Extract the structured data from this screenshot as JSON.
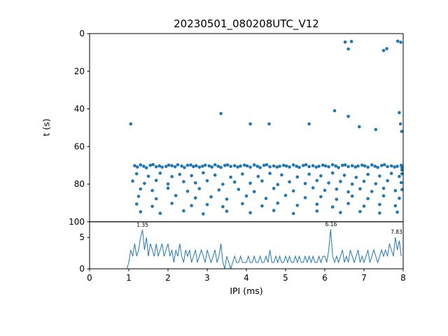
{
  "figure_title": "20230501_080208UTC_V12",
  "accent_color": "#1f77b4",
  "chart_data": [
    {
      "type": "scatter",
      "title": "20230501_080208UTC_V12",
      "xlabel": "",
      "ylabel": "t (s)",
      "xlim": [
        0,
        8
      ],
      "ylim": [
        0,
        100
      ],
      "y_inverted": true,
      "yticks": [
        0,
        20,
        40,
        60,
        80,
        100
      ],
      "grid": false,
      "legend": "none",
      "color": "#1f77b4",
      "points": [
        [
          1.15,
          70.2
        ],
        [
          1.22,
          70.9
        ],
        [
          1.3,
          69.8
        ],
        [
          1.38,
          70.5
        ],
        [
          1.45,
          71.3
        ],
        [
          1.55,
          70.0
        ],
        [
          1.62,
          69.6
        ],
        [
          1.7,
          70.8
        ],
        [
          1.78,
          70.3
        ],
        [
          1.85,
          71.0
        ],
        [
          1.95,
          70.6
        ],
        [
          2.02,
          69.9
        ],
        [
          2.1,
          70.2
        ],
        [
          2.18,
          70.8
        ],
        [
          2.25,
          69.7
        ],
        [
          2.35,
          70.4
        ],
        [
          2.42,
          71.2
        ],
        [
          2.5,
          70.0
        ],
        [
          2.58,
          69.8
        ],
        [
          2.65,
          70.7
        ],
        [
          2.72,
          70.2
        ],
        [
          2.8,
          71.0
        ],
        [
          2.88,
          70.5
        ],
        [
          2.95,
          69.9
        ],
        [
          3.05,
          70.3
        ],
        [
          3.12,
          70.9
        ],
        [
          3.2,
          69.7
        ],
        [
          3.28,
          70.5
        ],
        [
          3.35,
          71.1
        ],
        [
          3.45,
          70.1
        ],
        [
          3.52,
          69.8
        ],
        [
          3.6,
          70.6
        ],
        [
          3.7,
          70.2
        ],
        [
          3.78,
          70.9
        ],
        [
          3.85,
          70.4
        ],
        [
          3.95,
          69.9
        ],
        [
          4.02,
          70.3
        ],
        [
          4.1,
          71.0
        ],
        [
          4.2,
          69.8
        ],
        [
          4.28,
          70.5
        ],
        [
          4.35,
          71.2
        ],
        [
          4.45,
          70.0
        ],
        [
          4.52,
          69.7
        ],
        [
          4.6,
          70.8
        ],
        [
          4.7,
          70.3
        ],
        [
          4.78,
          70.9
        ],
        [
          4.85,
          70.5
        ],
        [
          4.95,
          70.0
        ],
        [
          5.02,
          70.4
        ],
        [
          5.1,
          70.9
        ],
        [
          5.2,
          69.8
        ],
        [
          5.28,
          70.5
        ],
        [
          5.35,
          71.1
        ],
        [
          5.45,
          70.1
        ],
        [
          5.52,
          69.7
        ],
        [
          5.6,
          70.7
        ],
        [
          5.7,
          70.2
        ],
        [
          5.78,
          71.0
        ],
        [
          5.85,
          70.5
        ],
        [
          5.95,
          69.9
        ],
        [
          6.02,
          70.3
        ],
        [
          6.1,
          70.8
        ],
        [
          6.2,
          69.7
        ],
        [
          6.28,
          70.4
        ],
        [
          6.35,
          71.2
        ],
        [
          6.45,
          70.0
        ],
        [
          6.52,
          69.8
        ],
        [
          6.6,
          70.7
        ],
        [
          6.7,
          70.2
        ],
        [
          6.78,
          70.9
        ],
        [
          6.85,
          70.4
        ],
        [
          6.95,
          69.9
        ],
        [
          7.02,
          70.3
        ],
        [
          7.1,
          71.0
        ],
        [
          7.2,
          69.8
        ],
        [
          7.28,
          70.5
        ],
        [
          7.35,
          71.1
        ],
        [
          7.45,
          70.1
        ],
        [
          7.52,
          69.7
        ],
        [
          7.6,
          70.7
        ],
        [
          7.7,
          70.3
        ],
        [
          7.78,
          70.9
        ],
        [
          7.85,
          70.5
        ],
        [
          7.95,
          70.0
        ],
        [
          7.97,
          71.3
        ],
        [
          7.97,
          72.5
        ],
        [
          1.2,
          74.5
        ],
        [
          1.5,
          75.8
        ],
        [
          1.8,
          74.2
        ],
        [
          2.1,
          76.0
        ],
        [
          2.3,
          74.8
        ],
        [
          2.6,
          75.5
        ],
        [
          2.9,
          74.0
        ],
        [
          3.2,
          75.2
        ],
        [
          3.6,
          76.3
        ],
        [
          3.9,
          74.6
        ],
        [
          4.3,
          75.9
        ],
        [
          4.6,
          74.3
        ],
        [
          4.9,
          75.1
        ],
        [
          5.3,
          76.2
        ],
        [
          5.6,
          74.7
        ],
        [
          5.9,
          75.6
        ],
        [
          6.2,
          74.1
        ],
        [
          6.5,
          75.3
        ],
        [
          6.8,
          76.4
        ],
        [
          7.1,
          74.8
        ],
        [
          7.4,
          75.7
        ],
        [
          7.7,
          74.3
        ],
        [
          7.9,
          75.9
        ],
        [
          7.97,
          74.5
        ],
        [
          1.1,
          78.4
        ],
        [
          1.4,
          79.6
        ],
        [
          1.7,
          78.0
        ],
        [
          2.0,
          79.9
        ],
        [
          2.4,
          78.7
        ],
        [
          2.7,
          79.3
        ],
        [
          3.0,
          78.2
        ],
        [
          3.4,
          80.1
        ],
        [
          3.7,
          78.9
        ],
        [
          4.1,
          79.5
        ],
        [
          4.4,
          78.3
        ],
        [
          4.8,
          80.2
        ],
        [
          5.1,
          78.8
        ],
        [
          5.5,
          79.7
        ],
        [
          5.8,
          78.1
        ],
        [
          6.1,
          79.4
        ],
        [
          6.4,
          78.6
        ],
        [
          6.7,
          80.0
        ],
        [
          7.0,
          78.5
        ],
        [
          7.3,
          79.8
        ],
        [
          7.6,
          78.2
        ],
        [
          7.95,
          79.2
        ],
        [
          1.3,
          82.6
        ],
        [
          1.6,
          83.4
        ],
        [
          2.0,
          82.1
        ],
        [
          2.5,
          83.8
        ],
        [
          2.8,
          82.4
        ],
        [
          3.3,
          83.1
        ],
        [
          3.8,
          82.8
        ],
        [
          4.2,
          84.0
        ],
        [
          4.7,
          82.3
        ],
        [
          5.2,
          83.6
        ],
        [
          5.7,
          82.0
        ],
        [
          6.0,
          83.3
        ],
        [
          6.3,
          82.7
        ],
        [
          6.6,
          84.1
        ],
        [
          6.9,
          82.5
        ],
        [
          7.2,
          83.9
        ],
        [
          7.5,
          82.2
        ],
        [
          7.8,
          83.5
        ],
        [
          7.97,
          82.9
        ],
        [
          1.25,
          86.5
        ],
        [
          1.7,
          87.8
        ],
        [
          2.2,
          86.1
        ],
        [
          2.7,
          87.3
        ],
        [
          3.1,
          86.8
        ],
        [
          3.5,
          88.0
        ],
        [
          4.0,
          86.3
        ],
        [
          4.5,
          87.6
        ],
        [
          5.0,
          86.0
        ],
        [
          5.5,
          87.2
        ],
        [
          5.9,
          86.7
        ],
        [
          6.3,
          88.1
        ],
        [
          6.7,
          86.4
        ],
        [
          7.1,
          87.7
        ],
        [
          7.5,
          86.2
        ],
        [
          7.9,
          87.5
        ],
        [
          1.2,
          90.6
        ],
        [
          1.6,
          91.8
        ],
        [
          2.1,
          90.2
        ],
        [
          2.6,
          91.4
        ],
        [
          3.0,
          90.9
        ],
        [
          3.4,
          92.0
        ],
        [
          3.9,
          90.4
        ],
        [
          4.4,
          91.6
        ],
        [
          4.8,
          90.1
        ],
        [
          5.3,
          91.3
        ],
        [
          5.8,
          90.7
        ],
        [
          6.2,
          92.1
        ],
        [
          6.6,
          90.3
        ],
        [
          7.0,
          91.7
        ],
        [
          7.4,
          90.8
        ],
        [
          7.8,
          91.5
        ],
        [
          1.3,
          94.7
        ],
        [
          1.8,
          95.5
        ],
        [
          2.4,
          94.2
        ],
        [
          2.9,
          95.8
        ],
        [
          3.5,
          94.4
        ],
        [
          4.1,
          95.2
        ],
        [
          4.7,
          94.0
        ],
        [
          5.2,
          95.6
        ],
        [
          5.8,
          94.3
        ],
        [
          6.4,
          95.1
        ],
        [
          6.9,
          94.6
        ],
        [
          7.4,
          95.4
        ],
        [
          7.85,
          94.9
        ],
        [
          6.52,
          4.5
        ],
        [
          6.6,
          8.2
        ],
        [
          6.68,
          4.2
        ],
        [
          7.5,
          9.0
        ],
        [
          7.58,
          8.0
        ],
        [
          7.86,
          4.0
        ],
        [
          7.94,
          4.6
        ],
        [
          1.05,
          48.0
        ],
        [
          3.35,
          42.5
        ],
        [
          4.1,
          48.0
        ],
        [
          4.58,
          48.0
        ],
        [
          5.6,
          48.0
        ],
        [
          6.25,
          41.0
        ],
        [
          6.6,
          44.0
        ],
        [
          6.88,
          49.5
        ],
        [
          7.3,
          51.0
        ],
        [
          7.9,
          42.0
        ],
        [
          7.93,
          48.0
        ],
        [
          7.96,
          52.0
        ]
      ]
    },
    {
      "type": "line",
      "title": "",
      "xlabel": "IPI (ms)",
      "ylabel": "",
      "xlim": [
        0,
        8
      ],
      "ylim": [
        0,
        7.5
      ],
      "xticks": [
        0,
        1,
        2,
        3,
        4,
        5,
        6,
        7,
        8
      ],
      "yticks": [
        0,
        5
      ],
      "grid": false,
      "legend": "none",
      "color": "#1f77b4",
      "bin_start": 0,
      "bin_step": 0.05,
      "values": [
        0,
        0,
        0,
        0,
        0,
        0,
        0,
        0,
        0,
        0,
        0,
        0,
        0,
        0,
        0,
        0,
        0,
        0,
        0,
        0,
        1,
        3,
        2,
        4,
        2,
        3,
        5,
        6.2,
        3,
        5,
        2,
        4,
        3,
        2,
        4,
        2,
        3,
        4,
        2,
        3,
        4,
        2,
        3,
        1,
        3,
        2,
        4,
        2,
        1,
        3,
        2,
        3,
        1,
        2,
        3,
        1,
        2,
        3,
        2,
        1,
        3,
        2,
        1,
        2,
        3,
        1,
        2,
        4,
        1,
        0,
        2,
        1,
        0,
        1,
        2,
        1,
        1,
        2,
        1,
        1,
        1,
        2,
        1,
        1,
        2,
        1,
        1,
        2,
        1,
        1,
        2,
        1,
        3,
        1,
        1,
        2,
        1,
        2,
        1,
        1,
        2,
        1,
        2,
        1,
        1,
        2,
        1,
        2,
        1,
        1,
        2,
        1,
        2,
        1,
        2,
        1,
        1,
        2,
        1,
        2,
        2,
        1,
        3,
        6.3,
        2,
        1,
        2,
        1,
        2,
        3,
        1,
        2,
        1,
        3,
        2,
        1,
        2,
        3,
        1,
        2,
        1,
        2,
        3,
        1,
        2,
        3,
        2,
        1,
        2,
        3,
        2,
        3,
        2,
        4,
        3,
        2,
        5,
        3,
        4.5,
        2
      ],
      "annotations": [
        {
          "x": 1.35,
          "y": 6.7,
          "label": "1.35"
        },
        {
          "x": 6.16,
          "y": 6.8,
          "label": "6.16"
        },
        {
          "x": 7.83,
          "y": 5.6,
          "label": "7.83"
        }
      ]
    }
  ]
}
